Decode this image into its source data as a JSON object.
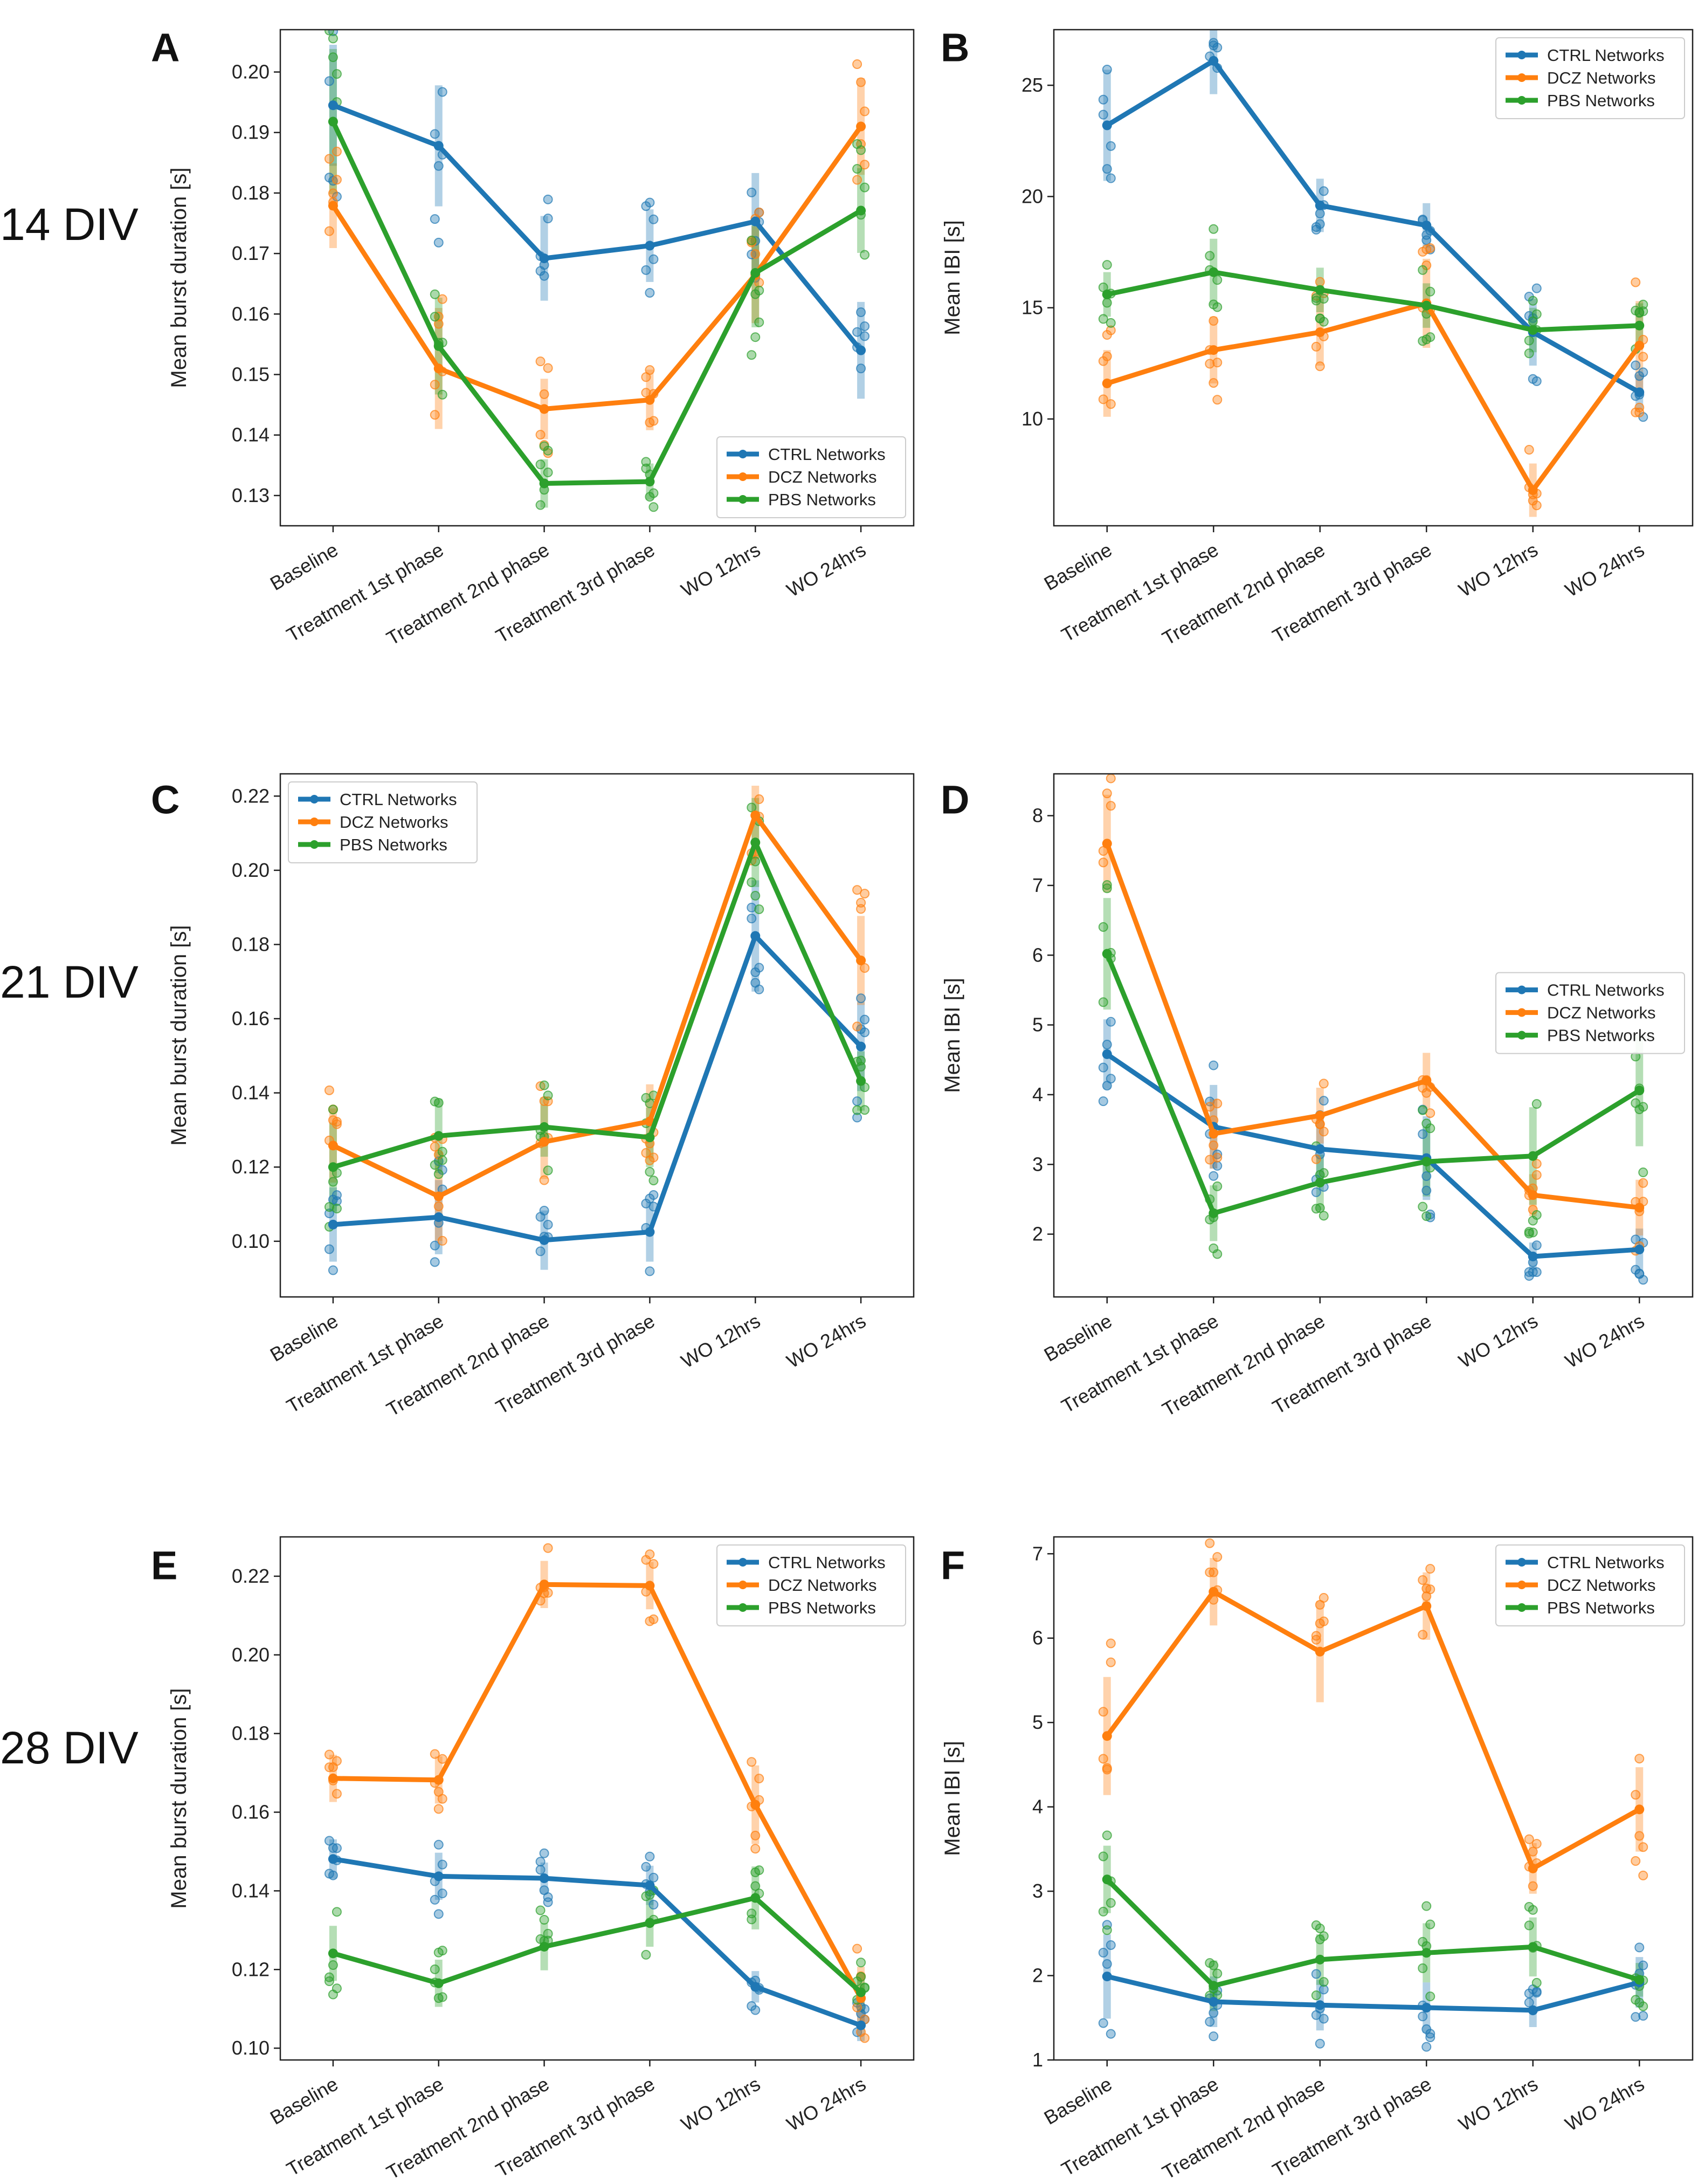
{
  "figure": {
    "row_labels": [
      "14 DIV",
      "21 DIV",
      "28 DIV"
    ],
    "colors": {
      "CTRL Networks": "#1f77b4",
      "DCZ Networks": "#ff7f0e",
      "PBS Networks": "#2ca02c"
    }
  },
  "chart_data": [
    {
      "panel": "A",
      "type": "line",
      "ylabel": "Mean burst duration [s]",
      "categories": [
        "Baseline",
        "Treatment 1st phase",
        "Treatment 2nd phase",
        "Treatment 3rd phase",
        "WO 12hrs",
        "WO 24hrs"
      ],
      "ylim": [
        0.125,
        0.207
      ],
      "yticks": [
        0.13,
        0.14,
        0.15,
        0.16,
        0.17,
        0.18,
        0.19,
        0.2
      ],
      "ytick_labels": [
        "0.13",
        "0.14",
        "0.15",
        "0.16",
        "0.17",
        "0.18",
        "0.19",
        "0.20"
      ],
      "legend_position": "lower-right",
      "series": [
        {
          "name": "CTRL Networks",
          "values": [
            0.1945,
            0.1878,
            0.1692,
            0.1713,
            0.1753,
            0.154
          ],
          "err": [
            0.01,
            0.01,
            0.007,
            0.006,
            0.008,
            0.008
          ]
        },
        {
          "name": "DCZ Networks",
          "values": [
            0.1779,
            0.151,
            0.1443,
            0.1458,
            0.1665,
            0.191
          ],
          "err": [
            0.007,
            0.01,
            0.005,
            0.005,
            0.008,
            0.008
          ]
        },
        {
          "name": "PBS Networks",
          "values": [
            0.1918,
            0.1547,
            0.132,
            0.1323,
            0.1668,
            0.1771
          ],
          "err": [
            0.012,
            0.008,
            0.004,
            0.003,
            0.009,
            0.007
          ]
        }
      ]
    },
    {
      "panel": "B",
      "type": "line",
      "ylabel": "Mean IBI [s]",
      "categories": [
        "Baseline",
        "Treatment 1st phase",
        "Treatment 2nd phase",
        "Treatment 3rd phase",
        "WO 12hrs",
        "WO 24hrs"
      ],
      "ylim": [
        5.2,
        27.5
      ],
      "yticks": [
        10,
        15,
        20,
        25
      ],
      "ytick_labels": [
        "10",
        "15",
        "20",
        "25"
      ],
      "legend_position": "top-right",
      "series": [
        {
          "name": "CTRL Networks",
          "values": [
            23.2,
            26.1,
            19.6,
            18.7,
            13.9,
            11.2
          ],
          "err": [
            2.5,
            1.5,
            1.2,
            1.0,
            1.5,
            0.8
          ]
        },
        {
          "name": "DCZ Networks",
          "values": [
            11.6,
            13.1,
            13.9,
            15.2,
            6.8,
            13.3
          ],
          "err": [
            1.5,
            1.5,
            1.5,
            2.0,
            1.2,
            2.0
          ]
        },
        {
          "name": "PBS Networks",
          "values": [
            15.6,
            16.6,
            15.8,
            15.1,
            14.0,
            14.2
          ],
          "err": [
            1.0,
            1.5,
            1.0,
            1.0,
            1.0,
            1.0
          ]
        }
      ]
    },
    {
      "panel": "C",
      "type": "line",
      "ylabel": "Mean burst duration [s]",
      "categories": [
        "Baseline",
        "Treatment 1st phase",
        "Treatment 2nd phase",
        "Treatment 3rd phase",
        "WO 12hrs",
        "WO 24hrs"
      ],
      "ylim": [
        0.085,
        0.226
      ],
      "yticks": [
        0.1,
        0.12,
        0.14,
        0.16,
        0.18,
        0.2,
        0.22
      ],
      "ytick_labels": [
        "0.10",
        "0.12",
        "0.14",
        "0.16",
        "0.18",
        "0.20",
        "0.22"
      ],
      "legend_position": "top-left",
      "series": [
        {
          "name": "CTRL Networks",
          "values": [
            0.1045,
            0.1065,
            0.1003,
            0.1025,
            0.1823,
            0.1525
          ],
          "err": [
            0.01,
            0.01,
            0.008,
            0.008,
            0.015,
            0.012
          ]
        },
        {
          "name": "DCZ Networks",
          "values": [
            0.1258,
            0.1121,
            0.1268,
            0.1323,
            0.2148,
            0.1757
          ],
          "err": [
            0.01,
            0.012,
            0.01,
            0.01,
            0.008,
            0.012
          ]
        },
        {
          "name": "PBS Networks",
          "values": [
            0.12,
            0.1284,
            0.1308,
            0.128,
            0.2075,
            0.1432
          ],
          "err": [
            0.012,
            0.01,
            0.008,
            0.008,
            0.012,
            0.008
          ]
        }
      ]
    },
    {
      "panel": "D",
      "type": "line",
      "ylabel": "Mean IBI [s]",
      "categories": [
        "Baseline",
        "Treatment 1st phase",
        "Treatment 2nd phase",
        "Treatment 3rd phase",
        "WO 12hrs",
        "WO 24hrs"
      ],
      "ylim": [
        1.1,
        8.6
      ],
      "yticks": [
        2,
        3,
        4,
        5,
        6,
        7,
        8
      ],
      "ytick_labels": [
        "2",
        "3",
        "4",
        "5",
        "6",
        "7",
        "8"
      ],
      "legend_position": "center-right",
      "series": [
        {
          "name": "CTRL Networks",
          "values": [
            4.58,
            3.54,
            3.22,
            3.09,
            1.68,
            1.78
          ],
          "err": [
            0.5,
            0.6,
            0.5,
            0.6,
            0.2,
            0.3
          ]
        },
        {
          "name": "DCZ Networks",
          "values": [
            7.6,
            3.44,
            3.7,
            4.2,
            2.56,
            2.38
          ],
          "err": [
            0.7,
            0.5,
            0.4,
            0.4,
            0.3,
            0.4
          ]
        },
        {
          "name": "PBS Networks",
          "values": [
            6.02,
            2.3,
            2.74,
            3.04,
            3.12,
            4.06
          ],
          "err": [
            0.8,
            0.4,
            0.4,
            0.5,
            0.7,
            0.8
          ]
        }
      ]
    },
    {
      "panel": "E",
      "type": "line",
      "ylabel": "Mean burst duration [s]",
      "categories": [
        "Baseline",
        "Treatment 1st phase",
        "Treatment 2nd phase",
        "Treatment 3rd phase",
        "WO 12hrs",
        "WO 24hrs"
      ],
      "ylim": [
        0.097,
        0.23
      ],
      "yticks": [
        0.1,
        0.12,
        0.14,
        0.16,
        0.18,
        0.2,
        0.22
      ],
      "ytick_labels": [
        "0.10",
        "0.12",
        "0.14",
        "0.16",
        "0.18",
        "0.20",
        "0.22"
      ],
      "legend_position": "top-right",
      "series": [
        {
          "name": "CTRL Networks",
          "values": [
            0.1481,
            0.1437,
            0.1432,
            0.1414,
            0.1156,
            0.1058
          ],
          "err": [
            0.005,
            0.006,
            0.004,
            0.005,
            0.004,
            0.004
          ]
        },
        {
          "name": "DCZ Networks",
          "values": [
            0.1686,
            0.1682,
            0.2179,
            0.2176,
            0.1619,
            0.1127
          ],
          "err": [
            0.006,
            0.006,
            0.006,
            0.006,
            0.01,
            0.008
          ]
        },
        {
          "name": "PBS Networks",
          "values": [
            0.1241,
            0.1165,
            0.1258,
            0.1318,
            0.1382,
            0.1142
          ],
          "err": [
            0.007,
            0.006,
            0.006,
            0.006,
            0.008,
            0.005
          ]
        }
      ]
    },
    {
      "panel": "F",
      "type": "line",
      "ylabel": "Mean IBI [s]",
      "categories": [
        "Baseline",
        "Treatment 1st phase",
        "Treatment 2nd phase",
        "Treatment 3rd phase",
        "WO 12hrs",
        "WO 24hrs"
      ],
      "ylim": [
        1.0,
        7.2
      ],
      "yticks": [
        1,
        2,
        3,
        4,
        5,
        6,
        7
      ],
      "ytick_labels": [
        "1",
        "2",
        "3",
        "4",
        "5",
        "6",
        "7"
      ],
      "legend_position": "top-right",
      "series": [
        {
          "name": "CTRL Networks",
          "values": [
            1.99,
            1.69,
            1.65,
            1.62,
            1.59,
            1.92
          ],
          "err": [
            0.5,
            0.3,
            0.3,
            0.3,
            0.2,
            0.3
          ]
        },
        {
          "name": "DCZ Networks",
          "values": [
            4.84,
            6.55,
            5.84,
            6.38,
            3.27,
            3.97
          ],
          "err": [
            0.7,
            0.4,
            0.6,
            0.4,
            0.3,
            0.5
          ]
        },
        {
          "name": "PBS Networks",
          "values": [
            3.14,
            1.88,
            2.19,
            2.27,
            2.34,
            1.95
          ],
          "err": [
            0.4,
            0.3,
            0.3,
            0.35,
            0.35,
            0.2
          ]
        }
      ]
    }
  ]
}
